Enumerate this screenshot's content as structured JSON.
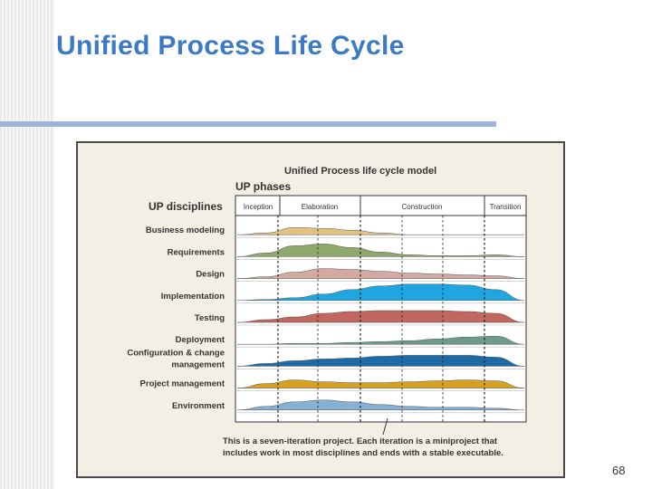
{
  "slide": {
    "title": "Unified Process Life Cycle",
    "page_number": "68"
  },
  "figure": {
    "title": "Unified Process life cycle model",
    "phases_heading": "UP phases",
    "disciplines_heading": "UP disciplines",
    "phases": [
      "Inception",
      "Elaboration",
      "Construction",
      "Transition"
    ],
    "disciplines": [
      {
        "label": "Business modeling",
        "color": "#e2c27e"
      },
      {
        "label": "Requirements",
        "color": "#8fa86b"
      },
      {
        "label": "Design",
        "color": "#d5a8a2"
      },
      {
        "label": "Implementation",
        "color": "#1fa6e0"
      },
      {
        "label": "Testing",
        "color": "#c0675f"
      },
      {
        "label": "Deployment",
        "color": "#6e9a8e"
      },
      {
        "label": "Configuration & change\nmanagement",
        "label_lines": [
          "Configuration & change",
          "management"
        ],
        "color": "#1e6aa6"
      },
      {
        "label": "Project management",
        "color": "#d8a020"
      },
      {
        "label": "Environment",
        "color": "#86b0d4"
      }
    ],
    "caption_lines": [
      "This is a seven-iteration project. Each iteration is a miniproject that",
      "includes work in most disciplines and ends with a stable executable."
    ],
    "colors": {
      "accent_title": "#3d7ac6",
      "rule": "#9ab5d6",
      "frame_bg": "#f3efe4"
    }
  }
}
